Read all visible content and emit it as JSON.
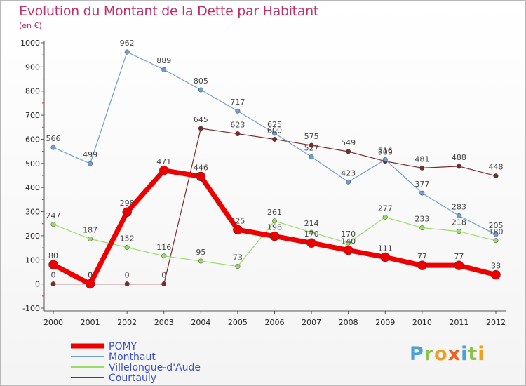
{
  "title": "Evolution du Montant de la Dette par Habitant",
  "subtitle": "(en €)",
  "logo": {
    "letters": [
      "P",
      "r",
      "o",
      "x",
      "i",
      "t",
      "i"
    ],
    "colors": [
      "#4aa0d8",
      "#8bc34a",
      "#f0a020",
      "#ee6020",
      "#4aa0d8",
      "#8bc34a",
      "#f0a020"
    ]
  },
  "chart_data": {
    "type": "line",
    "x": [
      "2000",
      "2001",
      "2002",
      "2003",
      "2004",
      "2005",
      "2006",
      "2007",
      "2008",
      "2009",
      "2010",
      "2011",
      "2012"
    ],
    "ylim": [
      -100,
      1000
    ],
    "yticks": [
      -100,
      0,
      100,
      200,
      300,
      400,
      500,
      600,
      700,
      800,
      900,
      1000
    ],
    "grid": false,
    "legend_position": "bottom-left",
    "series": [
      {
        "name": "Courtauly",
        "color": "#7a2c2c",
        "width": 1.2,
        "marker": 3.2,
        "values": [
          0,
          0,
          0,
          0,
          645,
          623,
          600,
          575,
          549,
          509,
          481,
          488,
          448
        ],
        "labels": [
          "0",
          "0",
          "0",
          "0",
          "645",
          "623",
          "600",
          "575",
          "549",
          "509",
          "481",
          "488",
          "448"
        ]
      },
      {
        "name": "Villelongue-d'Aude",
        "color": "#99dd66",
        "width": 1.2,
        "marker": 3.2,
        "values": [
          247,
          187,
          152,
          116,
          95,
          73,
          261,
          214,
          170,
          277,
          233,
          218,
          180
        ],
        "labels": [
          "247",
          "187",
          "152",
          "116",
          "95",
          "73",
          "261",
          "214",
          "170",
          "277",
          "233",
          "218",
          "180"
        ]
      },
      {
        "name": "Monthaut",
        "color": "#6f9fd0",
        "width": 1.2,
        "marker": 3.2,
        "values": [
          566,
          499,
          962,
          889,
          805,
          717,
          625,
          527,
          423,
          516,
          377,
          283,
          205
        ],
        "labels": [
          "566",
          "499",
          "962",
          "889",
          "805",
          "717",
          "625",
          "527",
          "423",
          "516",
          "377",
          "283",
          "205"
        ]
      },
      {
        "name": "POMY",
        "color": "#ee0000",
        "width": 7,
        "marker": 6.5,
        "values": [
          80,
          0,
          298,
          471,
          446,
          225,
          198,
          170,
          140,
          111,
          77,
          77,
          38
        ],
        "labels": [
          "80",
          "0",
          "298",
          "471",
          "446",
          "225",
          "198",
          "170",
          "140",
          "111",
          "77",
          "77",
          "38"
        ]
      }
    ],
    "legend": [
      "POMY",
      "Monthaut",
      "Villelongue-d'Aude",
      "Courtauly"
    ]
  }
}
